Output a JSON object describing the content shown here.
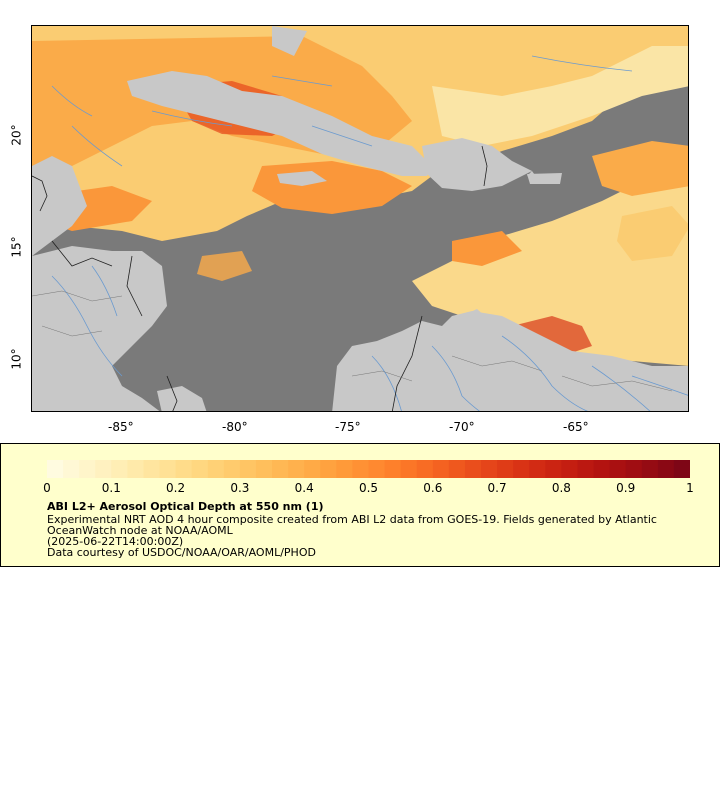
{
  "map": {
    "longitude_labels": [
      "-85°",
      "-80°",
      "-75°",
      "-70°",
      "-65°"
    ],
    "latitude_labels": [
      "20°",
      "15°",
      "10°"
    ],
    "colors": {
      "ocean_missing": "#7a7a7a",
      "land": "#c8c8c8",
      "aod_low": "#ffe8a0",
      "aod_mid": "#ff9a3a",
      "aod_high": "#d0281a",
      "rivers": "#6a9ad0",
      "borders": "#202020"
    }
  },
  "legend": {
    "ticks": [
      "0",
      "0.1",
      "0.2",
      "0.3",
      "0.4",
      "0.5",
      "0.6",
      "0.7",
      "0.8",
      "0.9",
      "1"
    ],
    "title": "ABI L2+ Aerosol Optical Depth at 550 nm (1)",
    "line1": "Experimental NRT AOD 4 hour composite created from ABI L2 data from GOES-19. Fields generated by Atlantic",
    "line2": "OceanWatch node at NOAA/AOML",
    "line3": "(2025-06-22T14:00:00Z)",
    "line4": "Data courtesy of USDOC/NOAA/OAR/AOML/PHOD",
    "colormap": [
      "#fffbe0",
      "#fff3c4",
      "#ffe9a8",
      "#ffdd8c",
      "#ffcf72",
      "#ffbf5c",
      "#ffad48",
      "#ff9838",
      "#ff822c",
      "#f76822",
      "#ea4e1c",
      "#dc3616",
      "#ca2212",
      "#b51410",
      "#9c0c12",
      "#7e0616"
    ]
  }
}
